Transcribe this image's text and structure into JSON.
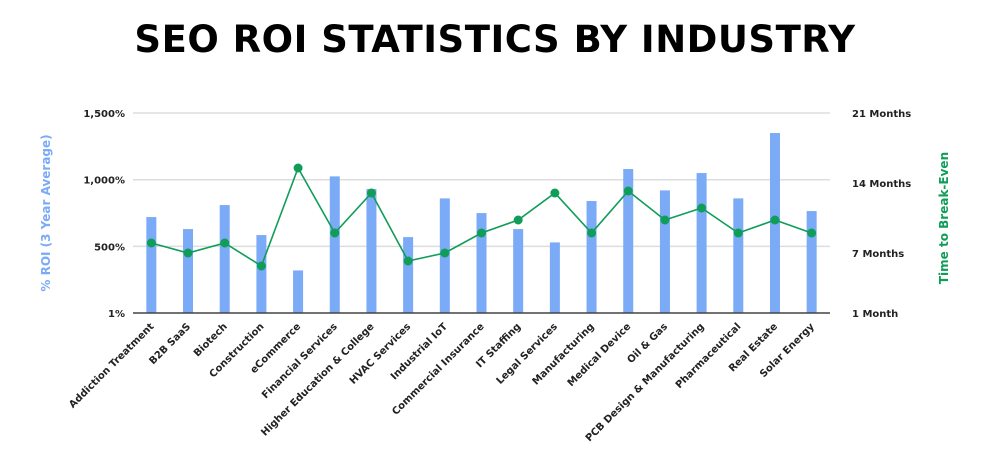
{
  "chart_data": {
    "type": "bar+line",
    "title": "SEO ROI STATISTICS BY INDUSTRY",
    "categories": [
      "Addiction Treatment",
      "B2B SaaS",
      "Biotech",
      "Construction",
      "eCommerce",
      "Financial Services",
      "Higher Education & College",
      "HVAC Services",
      "Industrial IoT",
      "Commercial Insurance",
      "IT Staffing",
      "Legal Services",
      "Manufacturing",
      "Medical Device",
      "Oil & Gas",
      "PCB Design & Manufacturing",
      "Pharmaceutical",
      "Real Estate",
      "Solar Energy"
    ],
    "series": [
      {
        "axis": "left",
        "type": "bar",
        "color": "#7baaf7",
        "values": [
          720,
          630,
          810,
          585,
          320,
          1025,
          930,
          570,
          860,
          750,
          630,
          530,
          840,
          1080,
          920,
          1050,
          860,
          1350,
          765
        ]
      },
      {
        "axis": "right",
        "type": "line",
        "color": "#0f9d58",
        "values": [
          8,
          7,
          8,
          5.7,
          15.5,
          9,
          13,
          6.2,
          7,
          9,
          10.3,
          13,
          9,
          13.2,
          10.3,
          11.5,
          9,
          10.3,
          9
        ]
      }
    ],
    "ylabel": "% ROI (3 Year Average)",
    "y2label": "Time to Break-Even",
    "ylim": [
      1,
      1500
    ],
    "y2lim": [
      1,
      21
    ],
    "yticks": [
      {
        "v": 1,
        "label": "1%"
      },
      {
        "v": 500,
        "label": "500%"
      },
      {
        "v": 1000,
        "label": "1,000%"
      },
      {
        "v": 1500,
        "label": "1,500%"
      }
    ],
    "y2ticks": [
      {
        "v": 1,
        "label": "1 Month"
      },
      {
        "v": 7,
        "label": "7 Months"
      },
      {
        "v": 14,
        "label": "14 Months"
      },
      {
        "v": 21,
        "label": "21 Months"
      }
    ],
    "grid": true,
    "legend": "none"
  }
}
